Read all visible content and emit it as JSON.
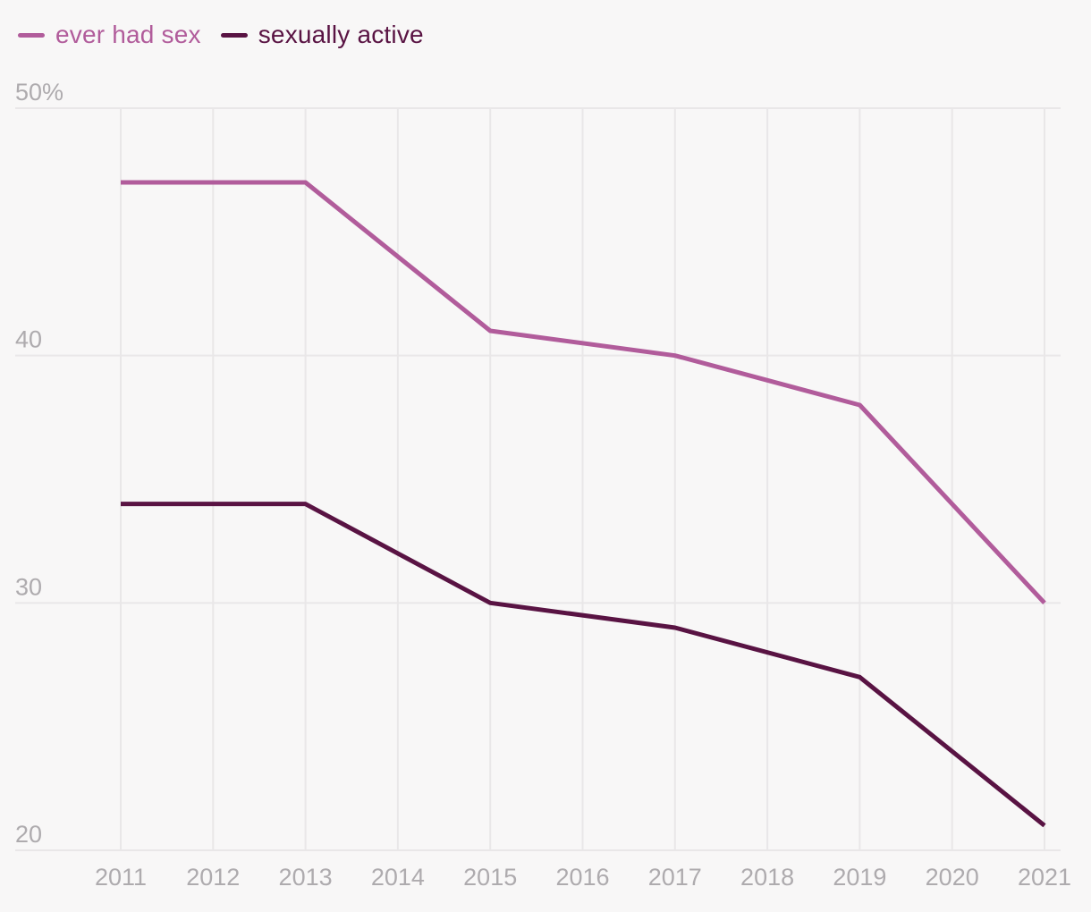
{
  "legend": {
    "items": [
      {
        "label": "ever had sex",
        "color": "#b15c9b"
      },
      {
        "label": "sexually active",
        "color": "#591343"
      }
    ]
  },
  "chart_data": {
    "type": "line",
    "title": "",
    "xlabel": "",
    "ylabel": "",
    "unit": "%",
    "x": [
      2011,
      2013,
      2015,
      2017,
      2019,
      2021
    ],
    "series": [
      {
        "name": "ever had sex",
        "color": "#b15c9b",
        "values": [
          47,
          47,
          41,
          40,
          38,
          30
        ]
      },
      {
        "name": "sexually active",
        "color": "#591343",
        "values": [
          34,
          34,
          30,
          29,
          27,
          21
        ]
      }
    ],
    "x_ticks": [
      2011,
      2012,
      2013,
      2014,
      2015,
      2016,
      2017,
      2018,
      2019,
      2020,
      2021
    ],
    "y_ticks": [
      {
        "value": 50,
        "label": "50%"
      },
      {
        "value": 40,
        "label": "40"
      },
      {
        "value": 30,
        "label": "30"
      },
      {
        "value": 20,
        "label": "20"
      }
    ],
    "xlim": [
      2011,
      2021
    ],
    "ylim": [
      20,
      50
    ],
    "grid": true,
    "legend_position": "top-left"
  },
  "colors": {
    "background": "#f8f7f7",
    "gridline": "#e9e7e8",
    "tick_label": "#aeabae"
  }
}
